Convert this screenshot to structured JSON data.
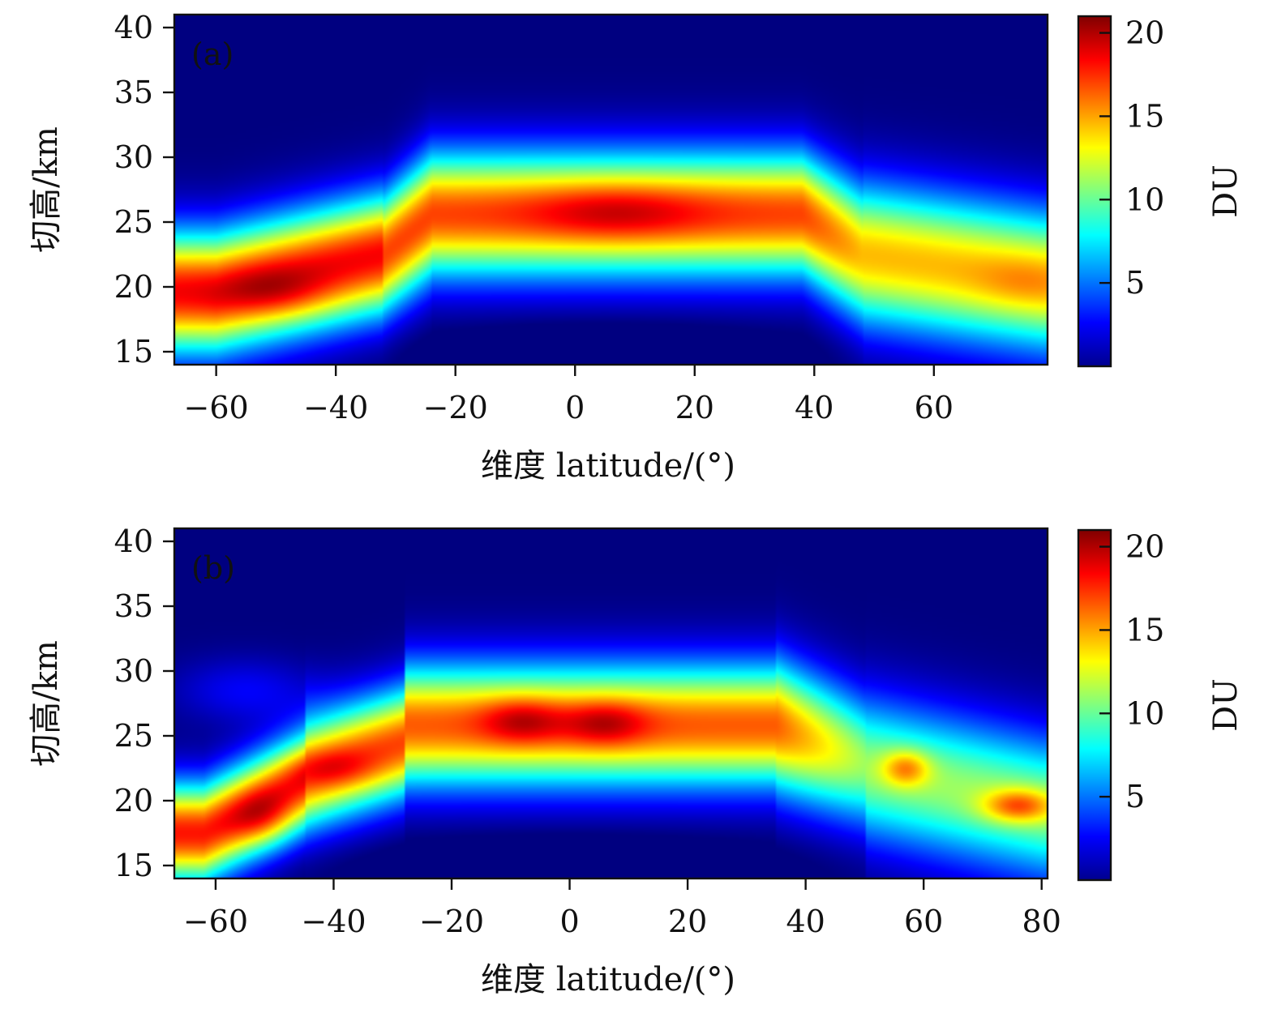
{
  "chart_data": [
    {
      "type": "heatmap",
      "panel_label": "(a)",
      "xlabel": "维度 latitude/(°)",
      "ylabel": "切高/km",
      "xlim": [
        -67,
        79
      ],
      "ylim": [
        14,
        41
      ],
      "xticks": [
        -60,
        -40,
        -20,
        0,
        20,
        40,
        60
      ],
      "xtick_labels": [
        "−60",
        "−40",
        "−20",
        "0",
        "20",
        "40",
        "60"
      ],
      "yticks": [
        15,
        20,
        25,
        30,
        35,
        40
      ],
      "colorbar": {
        "label": "DU",
        "range": [
          0,
          21
        ],
        "ticks": [
          5,
          10,
          15,
          20
        ],
        "colormap": "jet"
      },
      "features": [
        {
          "lat": -50,
          "alt": 19.5,
          "value": 19,
          "desc": "southern mid-latitude maximum"
        },
        {
          "lat": 7,
          "alt": 25.8,
          "value": 20.5,
          "desc": "tropical maximum"
        },
        {
          "lat": 28,
          "alt": 25,
          "value": 17
        },
        {
          "lat": -15,
          "alt": 25.5,
          "value": 17
        },
        {
          "lat": 50,
          "alt": 22,
          "value": 14.5
        },
        {
          "lat": 75,
          "alt": 20.5,
          "value": 15
        }
      ]
    },
    {
      "type": "heatmap",
      "panel_label": "(b)",
      "xlabel": "维度 latitude/(°)",
      "ylabel": "切高/km",
      "xlim": [
        -67,
        81
      ],
      "ylim": [
        14,
        41
      ],
      "xticks": [
        -60,
        -40,
        -20,
        0,
        20,
        40,
        60,
        80
      ],
      "xtick_labels": [
        "−60",
        "−40",
        "−20",
        "0",
        "20",
        "40",
        "60",
        "80"
      ],
      "yticks": [
        15,
        20,
        25,
        30,
        35,
        40
      ],
      "colorbar": {
        "label": "DU",
        "range": [
          0,
          21
        ],
        "ticks": [
          5,
          10,
          15,
          20
        ],
        "colormap": "jet"
      },
      "features": [
        {
          "lat": -52,
          "alt": 18.5,
          "value": 20
        },
        {
          "lat": -40,
          "alt": 22.5,
          "value": 18
        },
        {
          "lat": -8,
          "alt": 26.2,
          "value": 20
        },
        {
          "lat": 6,
          "alt": 26,
          "value": 20
        },
        {
          "lat": 57,
          "alt": 22.5,
          "value": 16
        },
        {
          "lat": 78,
          "alt": 19.5,
          "value": 17
        }
      ]
    }
  ]
}
